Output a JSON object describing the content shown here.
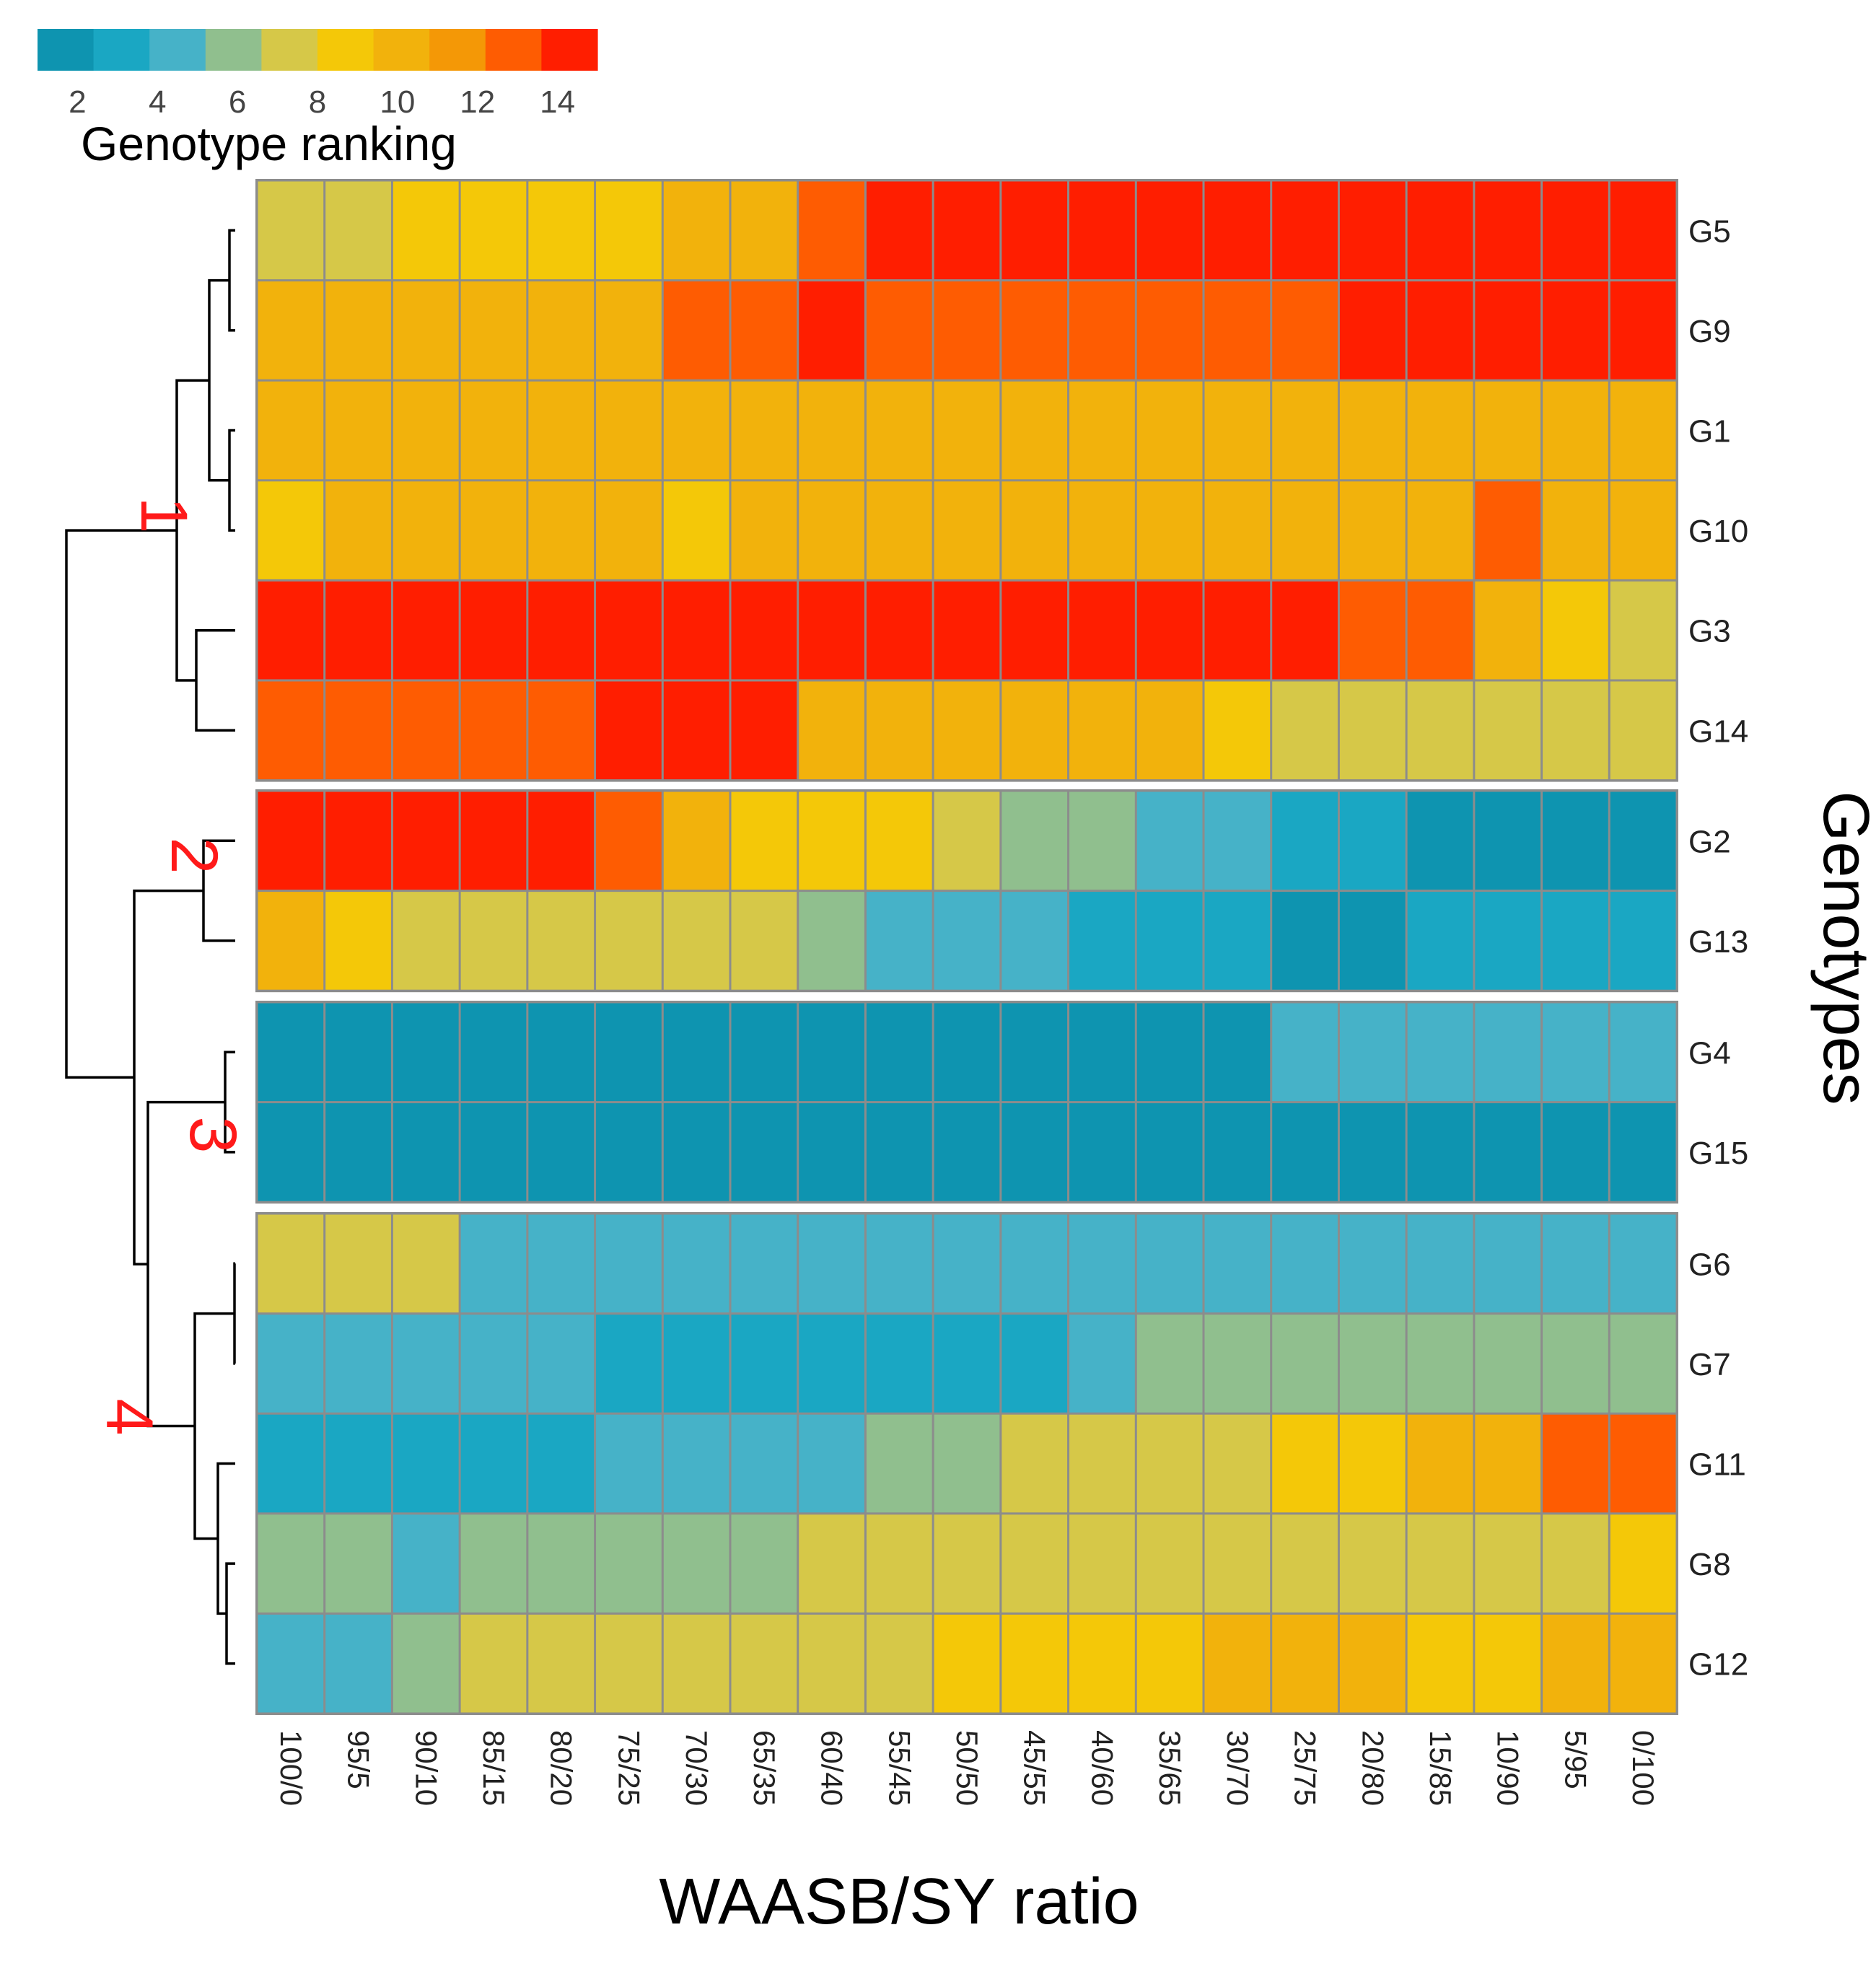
{
  "chart_data": {
    "type": "heatmap",
    "xlabel": "WAASB/SY ratio",
    "ylabel": "Genotypes",
    "legend_title": "Genotype ranking",
    "legend_ticks": [
      "2",
      "4",
      "6",
      "8",
      "10",
      "12",
      "14"
    ],
    "value_range": [
      1,
      15
    ],
    "palette": [
      "#0e94b0",
      "#1aa7c3",
      "#46b2c8",
      "#90bf8e",
      "#d6c848",
      "#f4c808",
      "#f2b20c",
      "#f49806",
      "#fe5c02",
      "#ff1e00"
    ],
    "columns": [
      "100/0",
      "95/5",
      "90/10",
      "85/15",
      "80/20",
      "75/25",
      "70/30",
      "65/35",
      "60/40",
      "55/45",
      "50/50",
      "45/55",
      "40/60",
      "35/65",
      "30/70",
      "25/75",
      "20/80",
      "15/85",
      "10/90",
      "5/95",
      "0/100"
    ],
    "rows": [
      "G5",
      "G9",
      "G1",
      "G10",
      "G3",
      "G14",
      "G2",
      "G13",
      "G4",
      "G15",
      "G6",
      "G7",
      "G11",
      "G8",
      "G12"
    ],
    "clusters": [
      {
        "label": "1",
        "rows": [
          "G5",
          "G9",
          "G1",
          "G10",
          "G3",
          "G14"
        ]
      },
      {
        "label": "2",
        "rows": [
          "G2",
          "G13"
        ]
      },
      {
        "label": "3",
        "rows": [
          "G4",
          "G15"
        ]
      },
      {
        "label": "4",
        "rows": [
          "G6",
          "G7",
          "G11",
          "G8",
          "G12"
        ]
      }
    ],
    "values": [
      [
        8,
        8,
        9,
        9,
        9,
        9,
        10,
        11,
        13,
        15,
        15,
        15,
        15,
        15,
        15,
        15,
        15,
        15,
        15,
        15,
        15
      ],
      [
        10,
        11,
        11,
        11,
        11,
        11,
        13,
        13,
        15,
        13,
        13,
        13,
        13,
        13,
        13,
        13,
        15,
        15,
        15,
        15,
        15
      ],
      [
        11,
        11,
        11,
        11,
        11,
        11,
        11,
        11,
        11,
        11,
        11,
        11,
        11,
        11,
        11,
        11,
        11,
        11,
        10,
        10,
        10
      ],
      [
        9,
        10,
        10,
        10,
        10,
        10,
        9,
        10,
        10,
        11,
        11,
        11,
        11,
        11,
        11,
        11,
        11,
        11,
        13,
        11,
        11
      ],
      [
        15,
        15,
        15,
        15,
        15,
        15,
        15,
        15,
        15,
        15,
        15,
        15,
        15,
        15,
        15,
        15,
        13,
        13,
        11,
        9,
        8
      ],
      [
        13,
        13,
        13,
        13,
        13,
        15,
        15,
        15,
        11,
        10,
        10,
        10,
        10,
        10,
        9,
        8,
        8,
        8,
        8,
        8,
        8
      ],
      [
        15,
        15,
        15,
        15,
        15,
        13,
        11,
        9,
        9,
        9,
        8,
        6,
        6,
        5,
        5,
        3,
        3,
        2,
        2,
        2,
        2
      ],
      [
        11,
        9,
        8,
        8,
        8,
        8,
        8,
        8,
        6,
        5,
        5,
        5,
        3,
        3,
        3,
        2,
        2,
        3,
        3,
        3,
        3
      ],
      [
        2,
        2,
        2,
        2,
        2,
        2,
        2,
        2,
        2,
        2,
        2,
        2,
        2,
        2,
        2,
        5,
        5,
        5,
        5,
        5,
        5
      ],
      [
        2,
        2,
        2,
        2,
        2,
        2,
        2,
        2,
        2,
        2,
        2,
        2,
        2,
        2,
        2,
        2,
        2,
        2,
        2,
        2,
        2
      ],
      [
        8,
        8,
        8,
        5,
        5,
        5,
        5,
        5,
        5,
        5,
        5,
        5,
        5,
        5,
        5,
        5,
        5,
        5,
        5,
        5,
        5
      ],
      [
        5,
        5,
        5,
        5,
        5,
        3,
        3,
        3,
        3,
        3,
        3,
        3,
        5,
        6,
        6,
        6,
        6,
        6,
        6,
        6,
        6
      ],
      [
        3,
        3,
        3,
        3,
        3,
        5,
        5,
        5,
        5,
        6,
        6,
        8,
        8,
        8,
        8,
        9,
        9,
        10,
        11,
        13,
        13
      ],
      [
        6,
        6,
        5,
        6,
        6,
        6,
        6,
        6,
        8,
        8,
        8,
        8,
        8,
        8,
        8,
        8,
        8,
        8,
        8,
        8,
        9
      ],
      [
        5,
        5,
        6,
        8,
        8,
        8,
        8,
        8,
        8,
        8,
        9,
        9,
        9,
        9,
        10,
        10,
        10,
        9,
        9,
        11,
        11
      ]
    ]
  }
}
